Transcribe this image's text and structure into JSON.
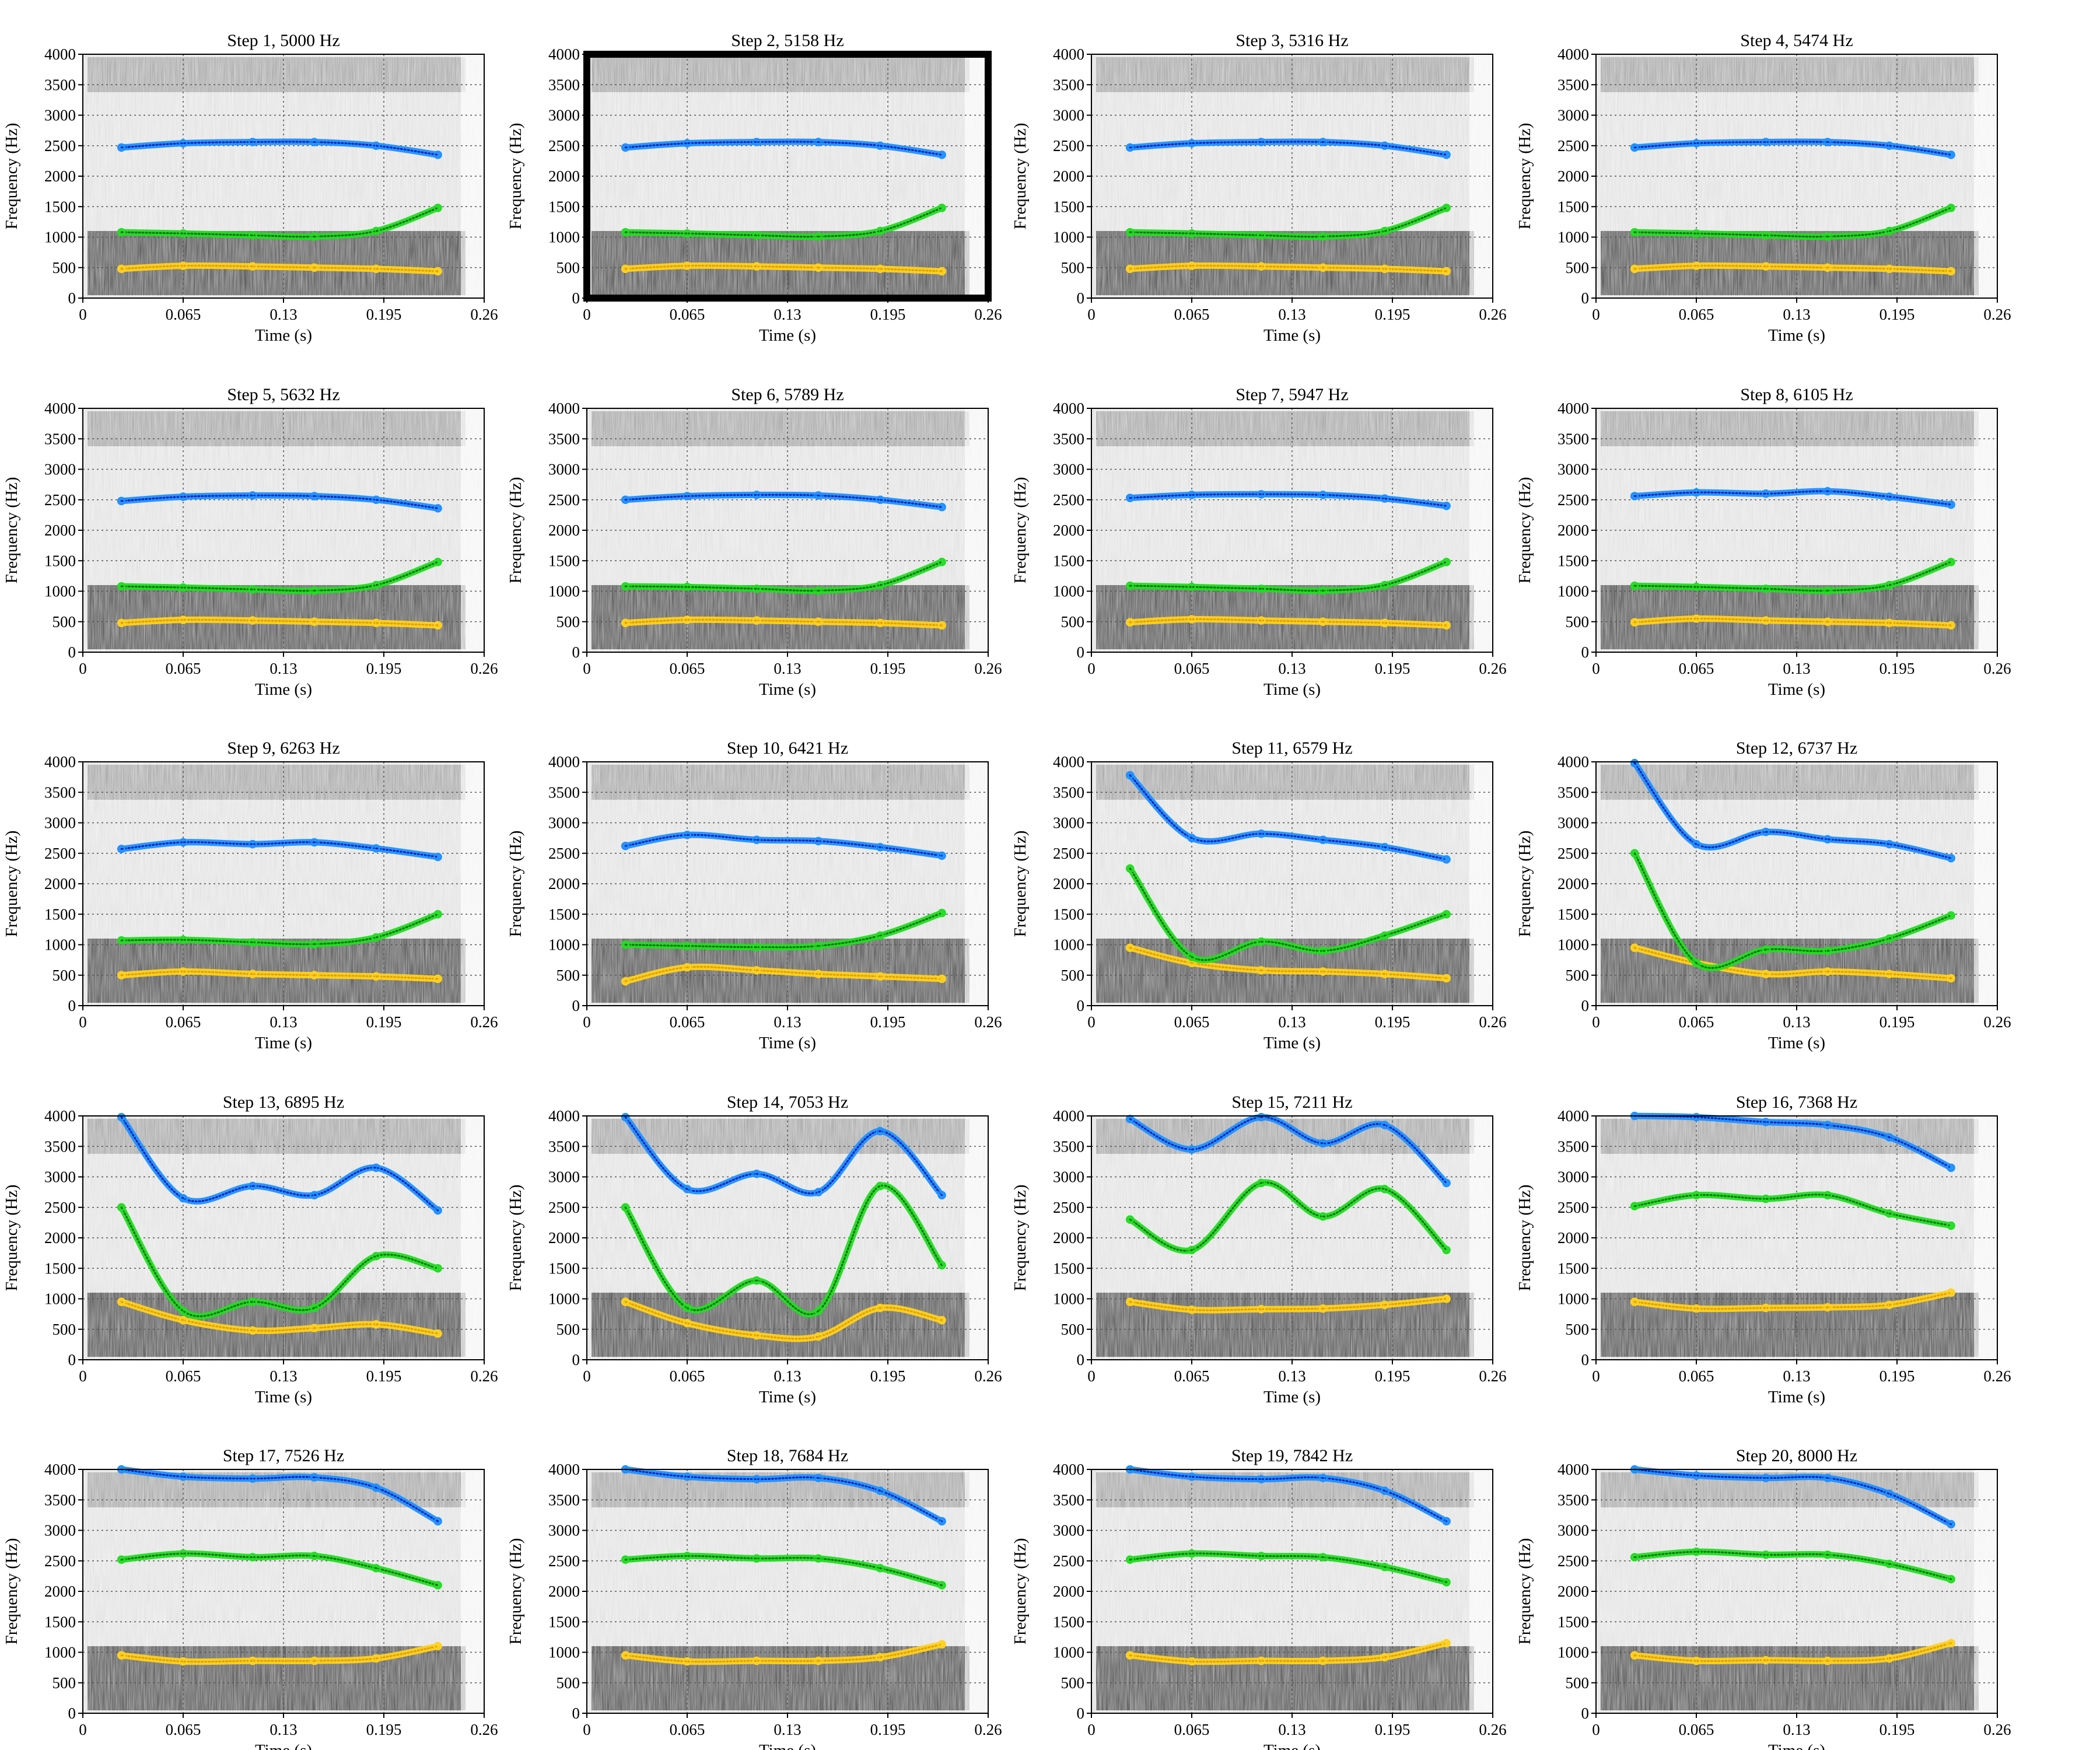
{
  "figure": {
    "xlabel": "Time (s)",
    "ylabel": "Frequency (Hz)",
    "x_ticks": [
      "0",
      "0.065",
      "0.13",
      "0.195",
      "0.26"
    ],
    "y_ticks": [
      "0",
      "500",
      "1000",
      "1500",
      "2000",
      "2500",
      "3000",
      "3500",
      "4000"
    ],
    "highlighted_panel": "Step 2, 5158 Hz",
    "colors": {
      "F1": "#ffd21f",
      "F2": "#22dd22",
      "F3": "#1e90ff",
      "F3_fit": "#0a1fb5",
      "F2_fit": "#0a6e0a",
      "F1_fit": "#e0a000"
    }
  },
  "chart_data": [
    {
      "type": "line",
      "title": "Step 1, 5000 Hz",
      "xlim": [
        0,
        0.26
      ],
      "ylim": [
        0,
        4000
      ],
      "grid": true,
      "x": [
        0.025,
        0.065,
        0.11,
        0.15,
        0.19,
        0.23
      ],
      "series": [
        {
          "values": [
            480,
            530,
            520,
            500,
            480,
            440
          ]
        },
        {
          "values": [
            1080,
            1060,
            1030,
            1010,
            1100,
            1480
          ]
        },
        {
          "values": [
            2470,
            2540,
            2560,
            2560,
            2500,
            2350
          ]
        }
      ]
    },
    {
      "type": "line",
      "title": "Step 2, 5158 Hz",
      "xlim": [
        0,
        0.26
      ],
      "ylim": [
        0,
        4000
      ],
      "grid": true,
      "x": [
        0.025,
        0.065,
        0.11,
        0.15,
        0.19,
        0.23
      ],
      "series": [
        {
          "values": [
            480,
            530,
            520,
            500,
            480,
            440
          ]
        },
        {
          "values": [
            1080,
            1060,
            1030,
            1010,
            1100,
            1480
          ]
        },
        {
          "values": [
            2470,
            2540,
            2560,
            2560,
            2500,
            2350
          ]
        }
      ]
    },
    {
      "type": "line",
      "title": "Step 3, 5316 Hz",
      "xlim": [
        0,
        0.26
      ],
      "ylim": [
        0,
        4000
      ],
      "grid": true,
      "x": [
        0.025,
        0.065,
        0.11,
        0.15,
        0.19,
        0.23
      ],
      "series": [
        {
          "values": [
            480,
            530,
            520,
            500,
            480,
            440
          ]
        },
        {
          "values": [
            1080,
            1060,
            1030,
            1010,
            1100,
            1480
          ]
        },
        {
          "values": [
            2470,
            2540,
            2560,
            2560,
            2500,
            2350
          ]
        }
      ]
    },
    {
      "type": "line",
      "title": "Step 4, 5474 Hz",
      "xlim": [
        0,
        0.26
      ],
      "ylim": [
        0,
        4000
      ],
      "grid": true,
      "x": [
        0.025,
        0.065,
        0.11,
        0.15,
        0.19,
        0.23
      ],
      "series": [
        {
          "values": [
            480,
            530,
            520,
            500,
            480,
            440
          ]
        },
        {
          "values": [
            1080,
            1060,
            1030,
            1010,
            1100,
            1480
          ]
        },
        {
          "values": [
            2470,
            2540,
            2560,
            2560,
            2500,
            2350
          ]
        }
      ]
    },
    {
      "type": "line",
      "title": "Step 5, 5632 Hz",
      "xlim": [
        0,
        0.26
      ],
      "ylim": [
        0,
        4000
      ],
      "grid": true,
      "x": [
        0.025,
        0.065,
        0.11,
        0.15,
        0.19,
        0.23
      ],
      "series": [
        {
          "values": [
            480,
            530,
            520,
            500,
            480,
            440
          ]
        },
        {
          "values": [
            1080,
            1060,
            1030,
            1010,
            1100,
            1480
          ]
        },
        {
          "values": [
            2480,
            2550,
            2570,
            2560,
            2500,
            2360
          ]
        }
      ]
    },
    {
      "type": "line",
      "title": "Step 6, 5789 Hz",
      "xlim": [
        0,
        0.26
      ],
      "ylim": [
        0,
        4000
      ],
      "grid": true,
      "x": [
        0.025,
        0.065,
        0.11,
        0.15,
        0.19,
        0.23
      ],
      "series": [
        {
          "values": [
            480,
            530,
            520,
            500,
            480,
            440
          ]
        },
        {
          "values": [
            1080,
            1070,
            1040,
            1010,
            1100,
            1480
          ]
        },
        {
          "values": [
            2500,
            2560,
            2580,
            2570,
            2500,
            2380
          ]
        }
      ]
    },
    {
      "type": "line",
      "title": "Step 7, 5947 Hz",
      "xlim": [
        0,
        0.26
      ],
      "ylim": [
        0,
        4000
      ],
      "grid": true,
      "x": [
        0.025,
        0.065,
        0.11,
        0.15,
        0.19,
        0.23
      ],
      "series": [
        {
          "values": [
            490,
            540,
            520,
            500,
            480,
            440
          ]
        },
        {
          "values": [
            1090,
            1070,
            1040,
            1010,
            1100,
            1480
          ]
        },
        {
          "values": [
            2530,
            2580,
            2590,
            2580,
            2520,
            2400
          ]
        }
      ]
    },
    {
      "type": "line",
      "title": "Step 8, 6105 Hz",
      "xlim": [
        0,
        0.26
      ],
      "ylim": [
        0,
        4000
      ],
      "grid": true,
      "x": [
        0.025,
        0.065,
        0.11,
        0.15,
        0.19,
        0.23
      ],
      "series": [
        {
          "values": [
            490,
            550,
            520,
            500,
            480,
            440
          ]
        },
        {
          "values": [
            1090,
            1070,
            1040,
            1010,
            1100,
            1480
          ]
        },
        {
          "values": [
            2560,
            2620,
            2600,
            2640,
            2550,
            2420
          ]
        }
      ]
    },
    {
      "type": "line",
      "title": "Step 9, 6263 Hz",
      "xlim": [
        0,
        0.26
      ],
      "ylim": [
        0,
        4000
      ],
      "grid": true,
      "x": [
        0.025,
        0.065,
        0.11,
        0.15,
        0.19,
        0.23
      ],
      "series": [
        {
          "values": [
            500,
            560,
            520,
            500,
            480,
            440
          ]
        },
        {
          "values": [
            1070,
            1080,
            1040,
            1010,
            1120,
            1500
          ]
        },
        {
          "values": [
            2570,
            2680,
            2650,
            2680,
            2580,
            2440
          ]
        }
      ]
    },
    {
      "type": "line",
      "title": "Step 10, 6421 Hz",
      "xlim": [
        0,
        0.26
      ],
      "ylim": [
        0,
        4000
      ],
      "grid": true,
      "x": [
        0.025,
        0.065,
        0.11,
        0.15,
        0.19,
        0.23
      ],
      "series": [
        {
          "values": [
            400,
            630,
            580,
            520,
            480,
            440
          ]
        },
        {
          "values": [
            1000,
            980,
            960,
            980,
            1150,
            1520
          ]
        },
        {
          "values": [
            2620,
            2800,
            2720,
            2700,
            2600,
            2460
          ]
        }
      ]
    },
    {
      "type": "line",
      "title": "Step 11, 6579 Hz",
      "xlim": [
        0,
        0.26
      ],
      "ylim": [
        0,
        4000
      ],
      "grid": true,
      "x": [
        0.025,
        0.065,
        0.11,
        0.15,
        0.19,
        0.23
      ],
      "series": [
        {
          "values": [
            950,
            700,
            580,
            560,
            520,
            450
          ]
        },
        {
          "values": [
            2250,
            800,
            1050,
            900,
            1150,
            1500
          ]
        },
        {
          "values": [
            3780,
            2750,
            2820,
            2720,
            2600,
            2400
          ]
        }
      ]
    },
    {
      "type": "line",
      "title": "Step 12, 6737 Hz",
      "xlim": [
        0,
        0.26
      ],
      "ylim": [
        0,
        4000
      ],
      "grid": true,
      "x": [
        0.025,
        0.065,
        0.11,
        0.15,
        0.19,
        0.23
      ],
      "series": [
        {
          "values": [
            950,
            700,
            520,
            560,
            520,
            450
          ]
        },
        {
          "values": [
            2500,
            700,
            920,
            900,
            1100,
            1480
          ]
        },
        {
          "values": [
            3980,
            2650,
            2850,
            2730,
            2650,
            2420
          ]
        }
      ]
    },
    {
      "type": "line",
      "title": "Step 13, 6895 Hz",
      "xlim": [
        0,
        0.26
      ],
      "ylim": [
        0,
        4000
      ],
      "grid": true,
      "x": [
        0.025,
        0.065,
        0.11,
        0.15,
        0.19,
        0.23
      ],
      "series": [
        {
          "values": [
            950,
            650,
            480,
            520,
            580,
            430
          ]
        },
        {
          "values": [
            2500,
            800,
            950,
            850,
            1700,
            1500
          ]
        },
        {
          "values": [
            3980,
            2650,
            2850,
            2700,
            3150,
            2450
          ]
        }
      ]
    },
    {
      "type": "line",
      "title": "Step 14, 7053 Hz",
      "xlim": [
        0,
        0.26
      ],
      "ylim": [
        0,
        4000
      ],
      "grid": true,
      "x": [
        0.025,
        0.065,
        0.11,
        0.15,
        0.19,
        0.23
      ],
      "series": [
        {
          "values": [
            950,
            600,
            400,
            380,
            850,
            650
          ]
        },
        {
          "values": [
            2500,
            850,
            1300,
            800,
            2850,
            1550
          ]
        },
        {
          "values": [
            3980,
            2800,
            3050,
            2750,
            3750,
            2700
          ]
        }
      ]
    },
    {
      "type": "line",
      "title": "Step 15, 7211 Hz",
      "xlim": [
        0,
        0.26
      ],
      "ylim": [
        0,
        4000
      ],
      "grid": true,
      "x": [
        0.025,
        0.065,
        0.11,
        0.15,
        0.19,
        0.23
      ],
      "series": [
        {
          "values": [
            950,
            820,
            830,
            840,
            900,
            1000
          ]
        },
        {
          "values": [
            2300,
            1800,
            2900,
            2350,
            2800,
            1800
          ]
        },
        {
          "values": [
            3950,
            3450,
            3980,
            3550,
            3850,
            2900
          ]
        }
      ]
    },
    {
      "type": "line",
      "title": "Step 16, 7368 Hz",
      "xlim": [
        0,
        0.26
      ],
      "ylim": [
        0,
        4000
      ],
      "grid": true,
      "x": [
        0.025,
        0.065,
        0.11,
        0.15,
        0.19,
        0.23
      ],
      "series": [
        {
          "values": [
            950,
            840,
            850,
            860,
            900,
            1100
          ]
        },
        {
          "values": [
            2520,
            2700,
            2640,
            2700,
            2400,
            2200
          ]
        },
        {
          "values": [
            4000,
            3980,
            3900,
            3850,
            3650,
            3150
          ]
        }
      ]
    },
    {
      "type": "line",
      "title": "Step 17, 7526 Hz",
      "xlim": [
        0,
        0.26
      ],
      "ylim": [
        0,
        4000
      ],
      "grid": true,
      "x": [
        0.025,
        0.065,
        0.11,
        0.15,
        0.19,
        0.23
      ],
      "series": [
        {
          "values": [
            950,
            850,
            860,
            860,
            900,
            1100
          ]
        },
        {
          "values": [
            2520,
            2620,
            2560,
            2580,
            2380,
            2100
          ]
        },
        {
          "values": [
            4000,
            3880,
            3850,
            3870,
            3700,
            3150
          ]
        }
      ]
    },
    {
      "type": "line",
      "title": "Step 18, 7684 Hz",
      "xlim": [
        0,
        0.26
      ],
      "ylim": [
        0,
        4000
      ],
      "grid": true,
      "x": [
        0.025,
        0.065,
        0.11,
        0.15,
        0.19,
        0.23
      ],
      "series": [
        {
          "values": [
            950,
            850,
            860,
            860,
            920,
            1130
          ]
        },
        {
          "values": [
            2520,
            2580,
            2540,
            2540,
            2380,
            2100
          ]
        },
        {
          "values": [
            4000,
            3880,
            3840,
            3860,
            3650,
            3150
          ]
        }
      ]
    },
    {
      "type": "line",
      "title": "Step 19, 7842 Hz",
      "xlim": [
        0,
        0.26
      ],
      "ylim": [
        0,
        4000
      ],
      "grid": true,
      "x": [
        0.025,
        0.065,
        0.11,
        0.15,
        0.19,
        0.23
      ],
      "series": [
        {
          "values": [
            950,
            850,
            860,
            860,
            920,
            1150
          ]
        },
        {
          "values": [
            2520,
            2620,
            2580,
            2560,
            2400,
            2150
          ]
        },
        {
          "values": [
            4000,
            3880,
            3840,
            3860,
            3650,
            3150
          ]
        }
      ]
    },
    {
      "type": "line",
      "title": "Step 20, 8000 Hz",
      "xlim": [
        0,
        0.26
      ],
      "ylim": [
        0,
        4000
      ],
      "grid": true,
      "x": [
        0.025,
        0.065,
        0.11,
        0.15,
        0.19,
        0.23
      ],
      "series": [
        {
          "values": [
            950,
            860,
            870,
            860,
            900,
            1150
          ]
        },
        {
          "values": [
            2560,
            2650,
            2600,
            2600,
            2450,
            2200
          ]
        },
        {
          "values": [
            4000,
            3900,
            3860,
            3860,
            3600,
            3100
          ]
        }
      ]
    }
  ]
}
